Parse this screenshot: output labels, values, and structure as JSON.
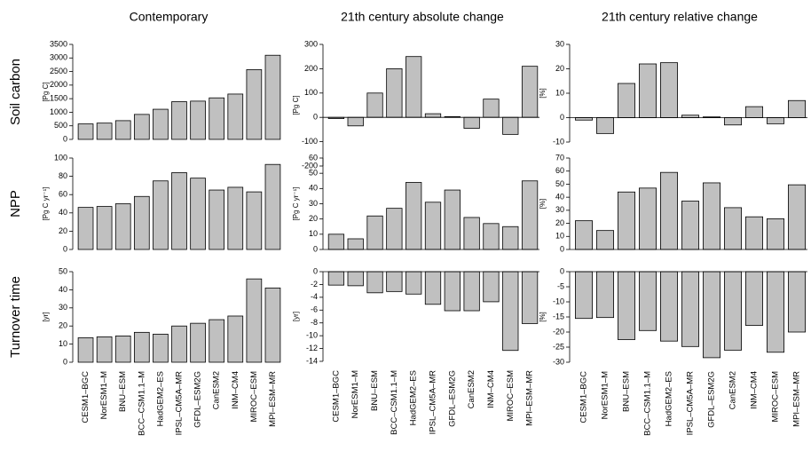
{
  "chart_data": [
    {
      "type": "bar",
      "title": "Contemporary",
      "row_label": "Soil carbon",
      "y_label": "[Pg C]",
      "color": "#c0c0c0",
      "zero_line": false,
      "values": [
        570,
        600,
        690,
        920,
        1110,
        1390,
        1410,
        1530,
        1670,
        2570,
        3100
      ],
      "ylim": [
        0,
        3500
      ],
      "yticks": [
        0,
        500,
        1000,
        1500,
        2000,
        2500,
        3000,
        3500
      ]
    },
    {
      "type": "bar",
      "title": "21th century absolute change",
      "y_label": "[Pg C]",
      "color": "#c0c0c0",
      "zero_line": true,
      "values": [
        -5,
        -35,
        100,
        200,
        250,
        15,
        3,
        -45,
        75,
        -70,
        210
      ],
      "ylim": [
        -200,
        300
      ],
      "yticks": [
        -200,
        -100,
        0,
        100,
        200,
        300
      ]
    },
    {
      "type": "bar",
      "title": "21th century relative change",
      "y_label": "[%]",
      "color": "#c0c0c0",
      "zero_line": true,
      "values": [
        -1,
        -6.5,
        14,
        22,
        22.5,
        1,
        0.3,
        -3,
        4.5,
        -2.5,
        7
      ],
      "ylim": [
        -10,
        30
      ],
      "yticks": [
        -10,
        0,
        10,
        20,
        30
      ]
    },
    {
      "type": "bar",
      "row_label": "NPP",
      "y_label": "[Pg C yr⁻¹]",
      "color": "#c0c0c0",
      "zero_line": false,
      "values": [
        46,
        47,
        50,
        58,
        75,
        84,
        78,
        65,
        68,
        63,
        93
      ],
      "ylim": [
        0,
        100
      ],
      "yticks": [
        0,
        20,
        40,
        60,
        80,
        100
      ]
    },
    {
      "type": "bar",
      "y_label": "[Pg C yr⁻¹]",
      "color": "#c0c0c0",
      "zero_line": true,
      "values": [
        10,
        7,
        22,
        27,
        44,
        31,
        39,
        21,
        17,
        15,
        45
      ],
      "ylim": [
        0,
        60
      ],
      "yticks": [
        0,
        10,
        20,
        30,
        40,
        50,
        60
      ]
    },
    {
      "type": "bar",
      "y_label": "[%]",
      "color": "#c0c0c0",
      "zero_line": true,
      "values": [
        22,
        14.5,
        44,
        47,
        59,
        37,
        51,
        32,
        25,
        23.5,
        49.5
      ],
      "ylim": [
        0,
        70
      ],
      "yticks": [
        0,
        10,
        20,
        30,
        40,
        50,
        60,
        70
      ]
    },
    {
      "type": "bar",
      "row_label": "Turnover time",
      "y_label": "[yr]",
      "color": "#c0c0c0",
      "zero_line": false,
      "categories": [
        "CESM1–BGC",
        "NorESM1–M",
        "BNU–ESM",
        "BCC–CSM1.1–M",
        "HadGEM2–ES",
        "IPSL–CM5A–MR",
        "GFDL–ESM2G",
        "CanESM2",
        "INM–CM4",
        "MIROC–ESM",
        "MPI–ESM–MR"
      ],
      "values": [
        13.5,
        14,
        14.5,
        16.5,
        15.5,
        20,
        21.5,
        23.5,
        25.5,
        46,
        41
      ],
      "ylim": [
        0,
        50
      ],
      "yticks": [
        0,
        10,
        20,
        30,
        40,
        50
      ]
    },
    {
      "type": "bar",
      "y_label": "[yr]",
      "color": "#c0c0c0",
      "zero_line": true,
      "categories": [
        "CESM1–BGC",
        "NorESM1–M",
        "BNU–ESM",
        "BCC–CSM1.1–M",
        "HadGEM2–ES",
        "IPSL–CM5A–MR",
        "GFDL–ESM2G",
        "CanESM2",
        "INM–CM4",
        "MIROC–ESM",
        "MPI–ESM–MR"
      ],
      "values": [
        -2.1,
        -2.2,
        -3.3,
        -3.1,
        -3.5,
        -5.1,
        -6.1,
        -6.1,
        -4.7,
        -12.3,
        -8.1
      ],
      "ylim": [
        -14,
        0
      ],
      "yticks": [
        -14,
        -12,
        -10,
        -8,
        -6,
        -4,
        -2,
        0
      ]
    },
    {
      "type": "bar",
      "y_label": "[%]",
      "color": "#c0c0c0",
      "zero_line": true,
      "categories": [
        "CESM1–BGC",
        "NorESM1–M",
        "BNU–ESM",
        "BCC–CSM1.1–M",
        "HadGEM2–ES",
        "IPSL–CM5A–MR",
        "GFDL–ESM2G",
        "CanESM2",
        "INM–CM4",
        "MIROC–ESM",
        "MPI–ESM–MR"
      ],
      "values": [
        -15.5,
        -15.2,
        -22.5,
        -19.5,
        -23,
        -24.8,
        -28.5,
        -26,
        -17.8,
        -26.7,
        -20
      ],
      "ylim": [
        -30,
        0
      ],
      "yticks": [
        -30,
        -25,
        -20,
        -15,
        -10,
        -5,
        0
      ]
    }
  ]
}
